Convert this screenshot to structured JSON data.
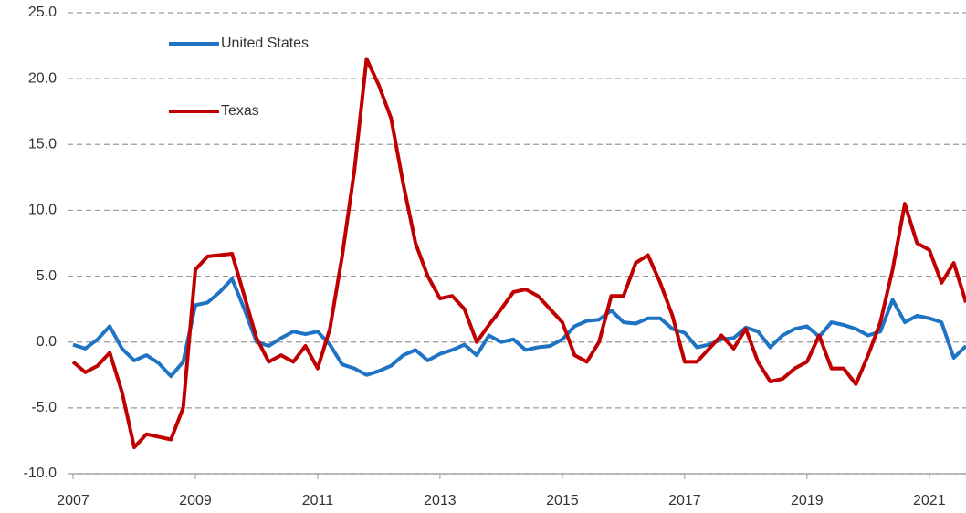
{
  "chart_data": {
    "type": "line",
    "x": [
      2007.0,
      2007.2,
      2007.4,
      2007.6,
      2007.8,
      2008.0,
      2008.2,
      2008.4,
      2008.6,
      2008.8,
      2009.0,
      2009.2,
      2009.4,
      2009.6,
      2009.8,
      2010.0,
      2010.2,
      2010.4,
      2010.6,
      2010.8,
      2011.0,
      2011.2,
      2011.4,
      2011.6,
      2011.8,
      2012.0,
      2012.2,
      2012.4,
      2012.6,
      2012.8,
      2013.0,
      2013.2,
      2013.4,
      2013.6,
      2013.8,
      2014.0,
      2014.2,
      2014.4,
      2014.6,
      2014.8,
      2015.0,
      2015.2,
      2015.4,
      2015.6,
      2015.8,
      2016.0,
      2016.2,
      2016.4,
      2016.6,
      2016.8,
      2017.0,
      2017.2,
      2017.4,
      2017.6,
      2017.8,
      2018.0,
      2018.2,
      2018.4,
      2018.6,
      2018.8,
      2019.0,
      2019.2,
      2019.4,
      2019.6,
      2019.8,
      2020.0,
      2020.2,
      2020.4,
      2020.6,
      2020.8,
      2021.0,
      2021.2,
      2021.4,
      2021.6
    ],
    "series": [
      {
        "name": "United States",
        "color": "#1f73c4",
        "values": [
          -0.2,
          -0.5,
          0.2,
          1.2,
          -0.5,
          -1.4,
          -1.0,
          -1.6,
          -2.6,
          -1.5,
          2.8,
          3.0,
          3.8,
          4.8,
          2.5,
          0.0,
          -0.3,
          0.3,
          0.8,
          0.6,
          0.8,
          -0.2,
          -1.7,
          -2.0,
          -2.5,
          -2.2,
          -1.8,
          -1.0,
          -0.6,
          -1.4,
          -0.9,
          -0.6,
          -0.2,
          -1.0,
          0.5,
          0.0,
          0.2,
          -0.6,
          -0.4,
          -0.3,
          0.2,
          1.2,
          1.6,
          1.7,
          2.4,
          1.5,
          1.4,
          1.8,
          1.8,
          1.0,
          0.7,
          -0.4,
          -0.2,
          0.2,
          0.3,
          1.1,
          0.8,
          -0.4,
          0.5,
          1.0,
          1.2,
          0.4,
          1.5,
          1.3,
          1.0,
          0.5,
          0.8,
          3.2,
          1.5,
          2.0,
          1.8,
          1.5,
          -1.2,
          -0.3
        ]
      },
      {
        "name": "Texas",
        "color": "#c00000",
        "values": [
          -1.5,
          -2.3,
          -1.8,
          -0.8,
          -3.8,
          -8.0,
          -7.0,
          -7.2,
          -7.4,
          -5.0,
          5.5,
          6.5,
          6.6,
          6.7,
          3.5,
          0.3,
          -1.5,
          -1.0,
          -1.5,
          -0.3,
          -2.0,
          1.0,
          6.5,
          13.0,
          21.5,
          19.5,
          17.0,
          12.0,
          7.5,
          5.0,
          3.3,
          3.5,
          2.5,
          0.0,
          1.3,
          2.5,
          3.8,
          4.0,
          3.5,
          2.5,
          1.5,
          -1.0,
          -1.5,
          0.0,
          3.5,
          3.5,
          6.0,
          6.6,
          4.5,
          2.0,
          -1.5,
          -1.5,
          -0.5,
          0.5,
          -0.5,
          1.0,
          -1.5,
          -3.0,
          -2.8,
          -2.0,
          -1.5,
          0.5,
          -2.0,
          -2.0,
          -3.2,
          -1.0,
          1.5,
          5.5,
          10.5,
          7.5,
          7.0,
          4.5,
          6.0,
          3.0
        ]
      }
    ],
    "xlim": [
      2007,
      2021.6
    ],
    "xticks": [
      2007,
      2009,
      2011,
      2013,
      2015,
      2017,
      2019,
      2021
    ],
    "ylim": [
      -10,
      25
    ],
    "yticks": [
      {
        "value": -10,
        "label": "-10.0"
      },
      {
        "value": -5,
        "label": "-5.0"
      },
      {
        "value": 0,
        "label": "0.0"
      },
      {
        "value": 5,
        "label": "5.0"
      },
      {
        "value": 10,
        "label": "10.0"
      },
      {
        "value": 15,
        "label": "15.0"
      },
      {
        "value": 20,
        "label": "20.0"
      },
      {
        "value": 25,
        "label": "25.0"
      }
    ],
    "grid": true
  }
}
